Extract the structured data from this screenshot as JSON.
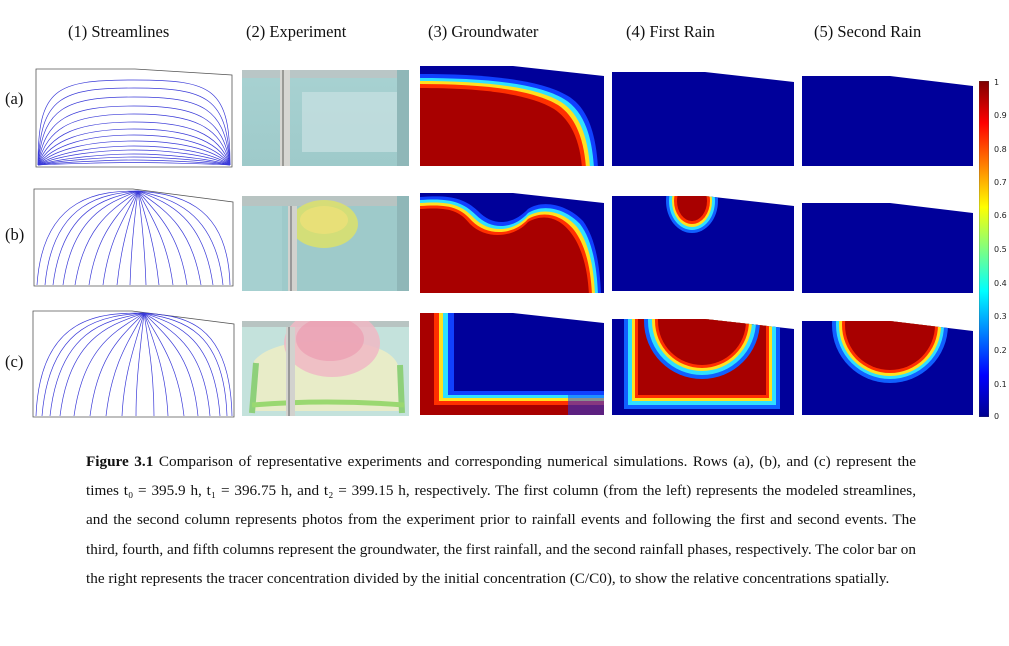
{
  "figure": {
    "column_titles": [
      "(1) Streamlines",
      "(2) Experiment",
      "(3) Groundwater",
      "(4) First Rain",
      "(5) Second Rain"
    ],
    "row_labels": [
      "(a)",
      "(b)",
      "(c)"
    ],
    "colorbar": {
      "ticks": [
        "1",
        "0.9",
        "0.8",
        "0.7",
        "0.6",
        "0.5",
        "0.4",
        "0.3",
        "0.2",
        "0.1",
        "0"
      ],
      "colors": [
        "#7f0000",
        "#ff0000",
        "#ff8000",
        "#ffff00",
        "#80ff80",
        "#00ffff",
        "#0080ff",
        "#0000ff",
        "#00008f"
      ]
    },
    "colors": {
      "background_field": "#00008f",
      "plume": "#a00000",
      "streamline": "#3030d8"
    }
  },
  "caption": {
    "label": "Figure 3.1",
    "text": "Comparison of representative experiments and corresponding numerical simulations. Rows (a), (b), and (c) represent the times t₀ = 395.9 h, t₁ = 396.75 h, and t₂ = 399.15 h, respectively. The first column (from the left) represents the modeled streamlines, and the second column represents photos from the experiment prior to rainfall events and following the first and second events. The third, fourth, and fifth columns represent the groundwater, the first rainfall, and the second rainfall phases, respectively. The color bar on the right represents the tracer concentration divided by the initial concentration (C/C0), to show the relative concentrations spatially."
  }
}
